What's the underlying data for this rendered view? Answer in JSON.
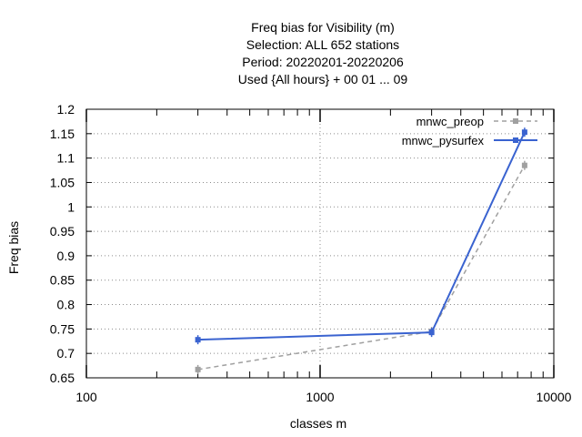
{
  "chart_data": {
    "type": "line",
    "title_lines": [
      "Freq bias  for Visibility (m)",
      "Selection: ALL    652 stations",
      "Period: 20220201-20220206",
      "Used {All hours} + 00 01 ... 09"
    ],
    "xlabel": "classes m",
    "ylabel": "Freq bias",
    "x_scale": "log",
    "xlim": [
      100,
      10000
    ],
    "ylim": [
      0.65,
      1.2
    ],
    "x_ticks": [
      100,
      1000,
      10000
    ],
    "x_tick_labels": [
      "100",
      "1000",
      "10000"
    ],
    "y_ticks": [
      0.65,
      0.7,
      0.75,
      0.8,
      0.85,
      0.9,
      0.95,
      1,
      1.05,
      1.1,
      1.15,
      1.2
    ],
    "y_tick_labels": [
      "0.65",
      "0.7",
      "0.75",
      "0.8",
      "0.85",
      "0.9",
      "0.95",
      "1",
      "1.05",
      "1.1",
      "1.15",
      "1.2"
    ],
    "grid": true,
    "legend_position": "top-right",
    "series": [
      {
        "name": "mnwc_preop",
        "color": "#a0a0a0",
        "style": "dashed",
        "x": [
          300,
          3000,
          7500
        ],
        "y": [
          0.667,
          0.745,
          1.085
        ]
      },
      {
        "name": "mnwc_pysurfex",
        "color": "#3a63d0",
        "style": "solid",
        "x": [
          300,
          3000,
          7500
        ],
        "y": [
          0.728,
          0.743,
          1.153
        ]
      }
    ]
  }
}
